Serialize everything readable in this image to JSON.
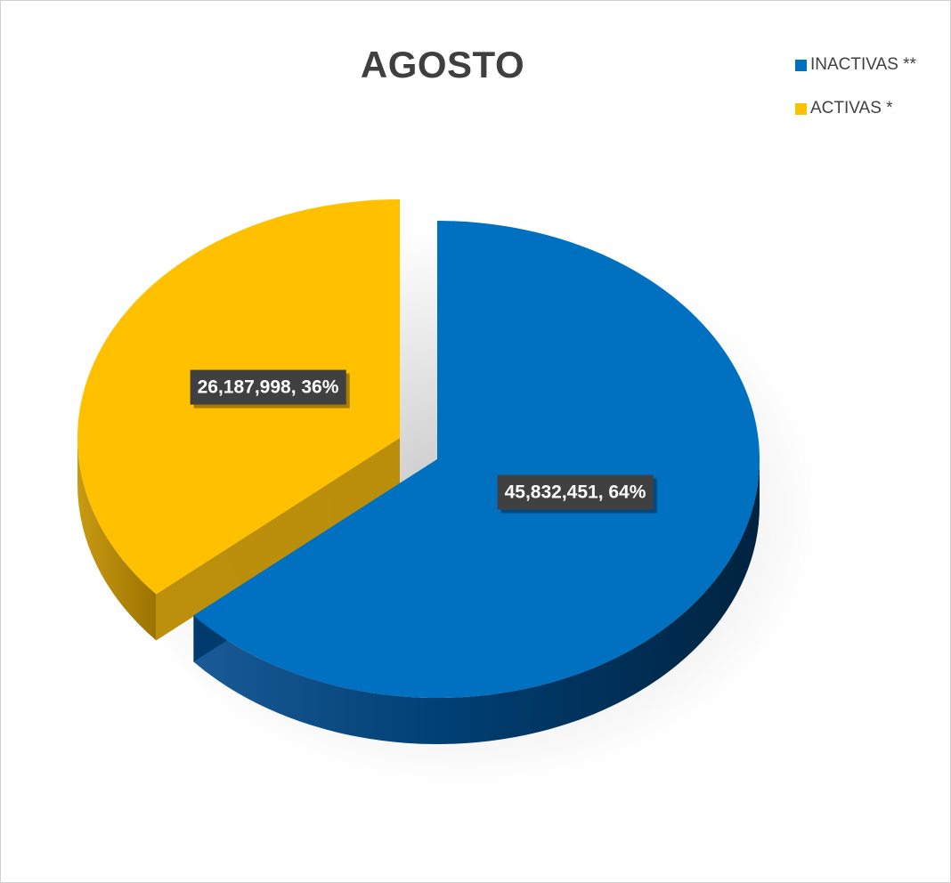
{
  "chart_data": {
    "type": "pie",
    "title": "AGOSTO",
    "legend_position": "top-right",
    "three_d": true,
    "exploded": true,
    "slices": [
      {
        "name": "INACTIVAS **",
        "value": 45832451,
        "percent": 64,
        "label": "45,832,451, 64%",
        "color": "#0070c0",
        "side_color": "#003a6a"
      },
      {
        "name": "ACTIVAS *",
        "value": 26187998,
        "percent": 36,
        "label": "26,187,998, 36%",
        "color": "#ffc000",
        "side_color": "#b88a00"
      }
    ],
    "label_box_color": "#404040"
  }
}
